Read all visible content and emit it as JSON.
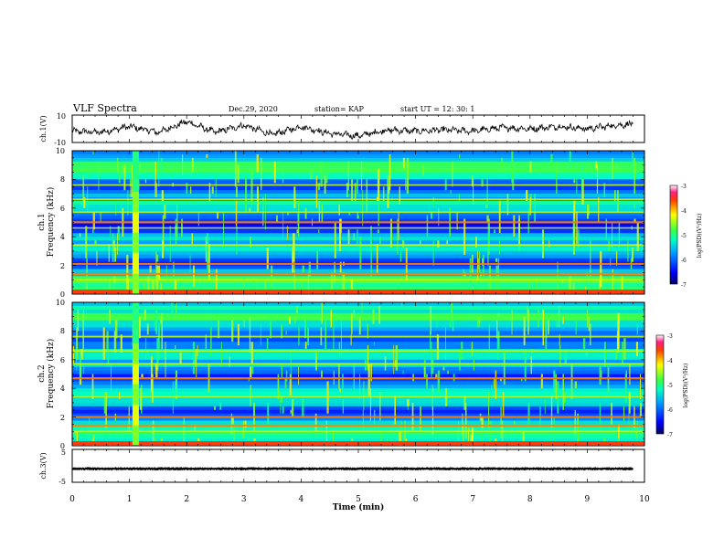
{
  "header": {
    "title": "VLF Spectra",
    "date": "Dec.29, 2020",
    "station": "station= KAP",
    "start_ut": "start  UT =   12: 30: 1"
  },
  "chart_data": [
    {
      "type": "line",
      "panel": "ch1-waveform",
      "ylabel": "ch.1(V)",
      "ylim": [
        -10,
        10
      ],
      "ytick_labels": [
        "10",
        "-10"
      ],
      "xlim": [
        0,
        10
      ],
      "trend": {
        "x": [
          0,
          0.5,
          1.0,
          1.5,
          2.0,
          2.5,
          3.0,
          3.5,
          4.0,
          4.5,
          5.0,
          5.5,
          6.0,
          6.5,
          7.0,
          7.5,
          8.0,
          8.5,
          9.0,
          9.5,
          9.8
        ],
        "y": [
          -2,
          -3,
          2,
          -3,
          6,
          -3,
          3,
          -5,
          2,
          -4,
          -6,
          -1,
          -2,
          -1,
          -2,
          1,
          0,
          2,
          0,
          3,
          4
        ]
      },
      "color": "#000000"
    },
    {
      "type": "heatmap",
      "panel": "ch1-spectrogram",
      "ylabel_line1": "ch.1",
      "ylabel_line2": "Frequency (kHz)",
      "ylim": [
        0,
        10
      ],
      "ytick_labels": [
        "0",
        "2",
        "4",
        "6",
        "8",
        "10"
      ],
      "xlim": [
        0,
        10
      ],
      "colorbar": {
        "label": "log(PSD)(V²/Hz)",
        "range": [
          -7,
          -3
        ],
        "tick_labels": [
          "-3",
          "-4",
          "-5",
          "-6",
          "-7"
        ]
      },
      "broadband_burst_min": 1.1,
      "strong_lines_khz": [
        5.0,
        2.1,
        1.4
      ],
      "weak_lines_khz": [
        7.6,
        6.6,
        5.7,
        4.6,
        3.4,
        1.0
      ]
    },
    {
      "type": "heatmap",
      "panel": "ch2-spectrogram",
      "ylabel_line1": "ch.2",
      "ylabel_line2": "Frequency (kHz)",
      "ylim": [
        0,
        10
      ],
      "ytick_labels": [
        "0",
        "2",
        "4",
        "6",
        "8",
        "10"
      ],
      "xlim": [
        0,
        10
      ],
      "colorbar": {
        "label": "log(PSD)(V²/Hz)",
        "range": [
          -7,
          -3
        ],
        "tick_labels": [
          "-3",
          "-4",
          "-5",
          "-6",
          "-7"
        ]
      },
      "broadband_burst_min": 1.1,
      "strong_lines_khz": [
        4.7,
        2.0,
        1.4
      ],
      "weak_lines_khz": [
        7.6,
        6.6,
        5.7,
        3.4,
        1.0
      ]
    },
    {
      "type": "line",
      "panel": "ch3-waveform",
      "ylabel": "ch.3(V)",
      "ylim": [
        -5,
        5
      ],
      "ytick_labels": [
        "5",
        "-5"
      ],
      "xlim": [
        0,
        10
      ],
      "level": -1,
      "color": "#000000"
    }
  ],
  "xaxis": {
    "label": "Time  (min)",
    "tick_labels": [
      "0",
      "1",
      "2",
      "3",
      "4",
      "5",
      "6",
      "7",
      "8",
      "9",
      "10"
    ]
  }
}
